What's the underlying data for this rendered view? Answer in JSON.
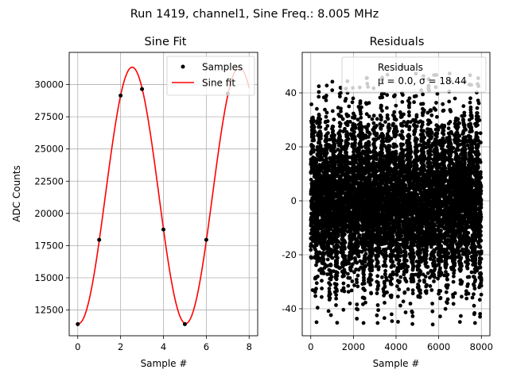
{
  "figure": {
    "suptitle": "Run 1419, channel1, Sine Freq.: 8.005 MHz"
  },
  "colors": {
    "sample_marker": "#000000",
    "fit_line": "#ff0000",
    "residual_marker": "#000000",
    "grid": "#b0b0b0"
  },
  "chart_data": [
    {
      "type": "line",
      "title": "Sine Fit",
      "xlabel": "Sample #",
      "ylabel": "ADC Counts",
      "xlim": [
        -0.4,
        8.4
      ],
      "ylim": [
        10500,
        32500
      ],
      "xticks": [
        0,
        2,
        4,
        6,
        8
      ],
      "yticks": [
        12500,
        15000,
        17500,
        20000,
        22500,
        25000,
        27500,
        30000
      ],
      "grid": true,
      "legend_position": "upper-right",
      "fit_params": {
        "offset": 21400,
        "amplitude": 9950,
        "period": 5,
        "peak_x": 2.54
      },
      "series": [
        {
          "name": "Samples",
          "kind": "scatter",
          "x": [
            0,
            1,
            2,
            3,
            4,
            5,
            6,
            7
          ],
          "y": [
            11400,
            17950,
            29150,
            29650,
            18750,
            11400,
            17950,
            29300
          ]
        },
        {
          "name": "Sine fit",
          "kind": "line",
          "x_range": [
            0,
            8
          ]
        }
      ]
    },
    {
      "type": "scatter",
      "title": "Residuals",
      "xlabel": "Sample #",
      "ylabel": "",
      "xlim": [
        -400,
        8400
      ],
      "ylim": [
        -50,
        55
      ],
      "xticks": [
        0,
        2000,
        4000,
        6000,
        8000
      ],
      "yticks": [
        -40,
        -20,
        0,
        20,
        40
      ],
      "grid": true,
      "legend_position": "upper-right",
      "n_points": 8000,
      "series": [
        {
          "name": "Residuals",
          "stats_label": "μ = 0.0, σ = 18.44",
          "mean": 0.0,
          "std": 18.44,
          "min": -46,
          "max": 50
        }
      ]
    }
  ]
}
